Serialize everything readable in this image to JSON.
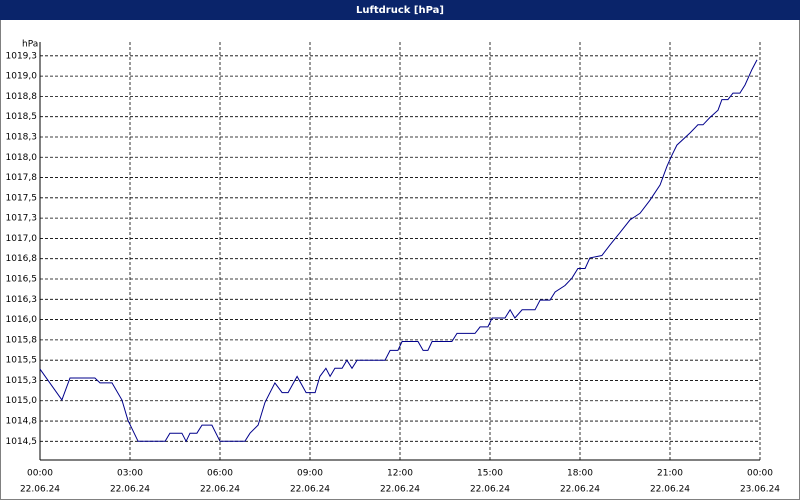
{
  "chart_data": {
    "type": "line",
    "title": "Luftdruck [hPa]",
    "y_label": "hPa",
    "xlim": [
      0,
      24
    ],
    "xticks": [
      {
        "value": 0,
        "label": "00:00",
        "date": "22.06.24"
      },
      {
        "value": 3,
        "label": "03:00",
        "date": "22.06.24"
      },
      {
        "value": 6,
        "label": "06:00",
        "date": "22.06.24"
      },
      {
        "value": 9,
        "label": "09:00",
        "date": "22.06.24"
      },
      {
        "value": 12,
        "label": "12:00",
        "date": "22.06.24"
      },
      {
        "value": 15,
        "label": "15:00",
        "date": "22.06.24"
      },
      {
        "value": 18,
        "label": "18:00",
        "date": "22.06.24"
      },
      {
        "value": 21,
        "label": "21:00",
        "date": "22.06.24"
      },
      {
        "value": 24,
        "label": "00:00",
        "date": "23.06.24"
      }
    ],
    "ylim": [
      1014.27,
      1019.42
    ],
    "yticks": [
      {
        "value": 1014.5,
        "label": "1014,5"
      },
      {
        "value": 1014.75,
        "label": "1014,8"
      },
      {
        "value": 1015.0,
        "label": "1015,0"
      },
      {
        "value": 1015.25,
        "label": "1015,3"
      },
      {
        "value": 1015.5,
        "label": "1015,5"
      },
      {
        "value": 1015.75,
        "label": "1015,8"
      },
      {
        "value": 1016.0,
        "label": "1016,0"
      },
      {
        "value": 1016.25,
        "label": "1016,3"
      },
      {
        "value": 1016.5,
        "label": "1016,5"
      },
      {
        "value": 1016.75,
        "label": "1016,8"
      },
      {
        "value": 1017.0,
        "label": "1017,0"
      },
      {
        "value": 1017.25,
        "label": "1017,3"
      },
      {
        "value": 1017.5,
        "label": "1017,5"
      },
      {
        "value": 1017.75,
        "label": "1017,8"
      },
      {
        "value": 1018.0,
        "label": "1018,0"
      },
      {
        "value": 1018.25,
        "label": "1018,3"
      },
      {
        "value": 1018.5,
        "label": "1018,5"
      },
      {
        "value": 1018.75,
        "label": "1018,8"
      },
      {
        "value": 1019.0,
        "label": "1019,0"
      },
      {
        "value": 1019.25,
        "label": "1019,3"
      }
    ],
    "grid": true,
    "color": "#00008b",
    "x": [
      0,
      0.73,
      1.0,
      1.83,
      2.0,
      2.4,
      2.73,
      2.93,
      3.27,
      4.17,
      4.33,
      4.73,
      4.87,
      5.0,
      5.23,
      5.4,
      5.73,
      6.0,
      6.83,
      7.0,
      7.27,
      7.5,
      7.83,
      8.07,
      8.27,
      8.57,
      8.87,
      9.17,
      9.33,
      9.53,
      9.67,
      9.83,
      10.07,
      10.23,
      10.4,
      10.57,
      11.5,
      11.67,
      11.93,
      12.07,
      12.6,
      12.77,
      12.93,
      13.07,
      13.73,
      13.9,
      14.5,
      14.67,
      14.93,
      15.07,
      15.5,
      15.67,
      15.83,
      16.07,
      16.5,
      16.67,
      17.0,
      17.17,
      17.5,
      17.73,
      17.93,
      18.17,
      18.33,
      18.73,
      19.0,
      19.33,
      19.67,
      20.0,
      20.33,
      20.67,
      20.9,
      21.07,
      21.23,
      21.67,
      21.93,
      22.1,
      22.33,
      22.6,
      22.73,
      22.93,
      23.1,
      23.33,
      23.5,
      23.73,
      23.9
    ],
    "values": [
      1015.39,
      1015.01,
      1015.28,
      1015.28,
      1015.22,
      1015.22,
      1015.01,
      1014.76,
      1014.5,
      1014.5,
      1014.6,
      1014.6,
      1014.5,
      1014.6,
      1014.6,
      1014.7,
      1014.7,
      1014.5,
      1014.5,
      1014.6,
      1014.7,
      1014.98,
      1015.22,
      1015.1,
      1015.1,
      1015.3,
      1015.1,
      1015.1,
      1015.3,
      1015.4,
      1015.3,
      1015.4,
      1015.4,
      1015.5,
      1015.4,
      1015.5,
      1015.5,
      1015.62,
      1015.62,
      1015.73,
      1015.73,
      1015.62,
      1015.62,
      1015.73,
      1015.73,
      1015.83,
      1015.83,
      1015.91,
      1015.91,
      1016.02,
      1016.02,
      1016.12,
      1016.02,
      1016.12,
      1016.12,
      1016.24,
      1016.24,
      1016.34,
      1016.42,
      1016.51,
      1016.63,
      1016.63,
      1016.76,
      1016.79,
      1016.92,
      1017.07,
      1017.23,
      1017.31,
      1017.47,
      1017.66,
      1017.89,
      1018.03,
      1018.15,
      1018.3,
      1018.4,
      1018.4,
      1018.49,
      1018.58,
      1018.71,
      1018.71,
      1018.79,
      1018.79,
      1018.89,
      1019.08,
      1019.2
    ]
  }
}
